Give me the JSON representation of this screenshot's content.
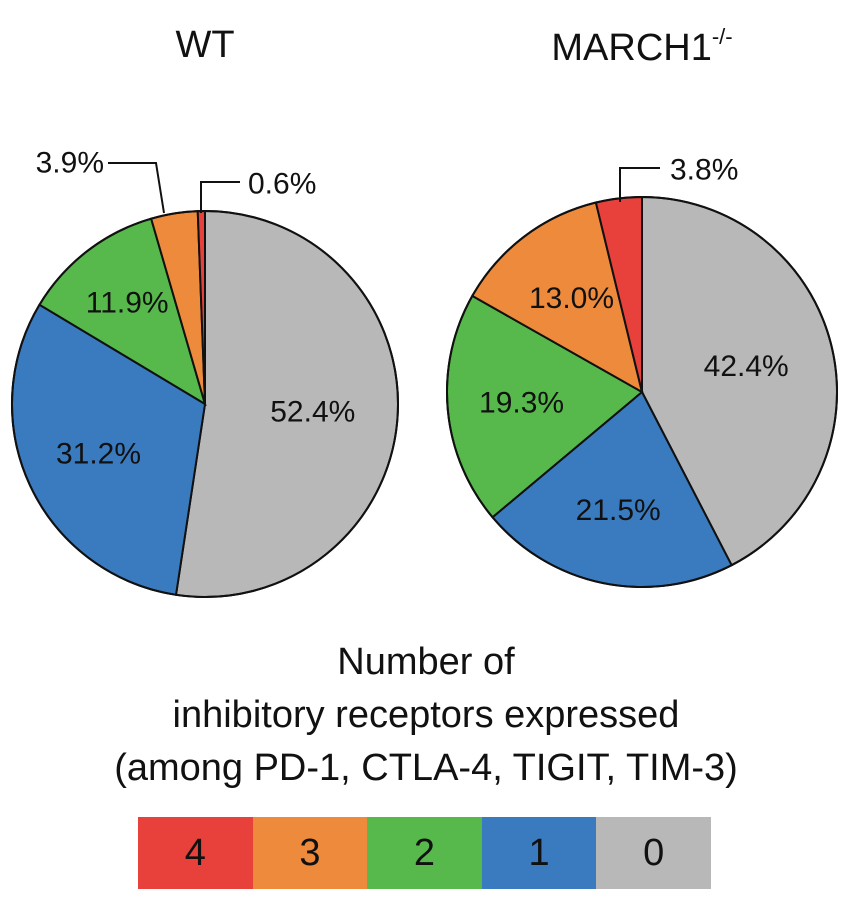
{
  "colors": {
    "4": "#e8403a",
    "3": "#ee8a3c",
    "2": "#57b94b",
    "1": "#3a7bbf",
    "0": "#b8b8b8"
  },
  "chart_data": [
    {
      "type": "pie",
      "title": "WT",
      "slices": [
        {
          "category": "0",
          "value": 52.4,
          "label": "52.4%"
        },
        {
          "category": "1",
          "value": 31.2,
          "label": "31.2%"
        },
        {
          "category": "2",
          "value": 11.9,
          "label": "11.9%"
        },
        {
          "category": "3",
          "value": 3.9,
          "label": "3.9%"
        },
        {
          "category": "4",
          "value": 0.6,
          "label": "0.6%"
        }
      ]
    },
    {
      "type": "pie",
      "title": "MARCH1",
      "title_superscript": "-/-",
      "slices": [
        {
          "category": "0",
          "value": 42.4,
          "label": "42.4%"
        },
        {
          "category": "1",
          "value": 21.5,
          "label": "21.5%"
        },
        {
          "category": "2",
          "value": 19.3,
          "label": "19.3%"
        },
        {
          "category": "3",
          "value": 13.0,
          "label": "13.0%"
        },
        {
          "category": "4",
          "value": 3.8,
          "label": "3.8%"
        }
      ]
    }
  ],
  "legend": {
    "title_lines": [
      "Number of",
      "inhibitory receptors expressed",
      "(among PD-1, CTLA-4, TIGIT, TIM-3)"
    ],
    "items": [
      "4",
      "3",
      "2",
      "1",
      "0"
    ]
  }
}
